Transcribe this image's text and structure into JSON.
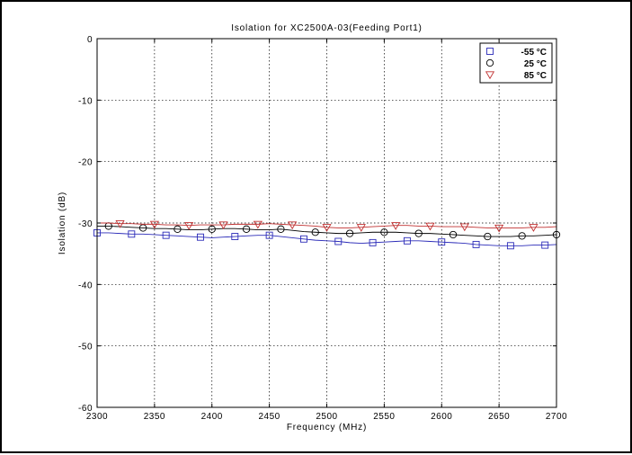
{
  "chart_data": {
    "type": "line",
    "title": "Isolation for XC2500A-03(Feeding Port1)",
    "xlabel": "Frequency (MHz)",
    "ylabel": "Isolation (dB)",
    "xlim": [
      2300,
      2700
    ],
    "ylim": [
      -60,
      0
    ],
    "xticks": [
      2300,
      2350,
      2400,
      2450,
      2500,
      2550,
      2600,
      2650,
      2700
    ],
    "yticks": [
      0,
      -10,
      -20,
      -30,
      -40,
      -50,
      -60
    ],
    "xtick_labels": [
      "2300",
      "2350",
      "2400",
      "2450",
      "2500",
      "2550",
      "2600",
      "2650",
      "2700"
    ],
    "ytick_labels": [
      "0",
      "-10",
      "-20",
      "-30",
      "-40",
      "-50",
      "-60"
    ],
    "grid": true,
    "legend_position": "top-right",
    "x": [
      2300,
      2310,
      2320,
      2330,
      2340,
      2350,
      2360,
      2370,
      2380,
      2390,
      2400,
      2410,
      2420,
      2430,
      2440,
      2450,
      2460,
      2470,
      2480,
      2490,
      2500,
      2510,
      2520,
      2530,
      2540,
      2550,
      2560,
      2570,
      2580,
      2590,
      2600,
      2610,
      2620,
      2630,
      2640,
      2650,
      2660,
      2670,
      2680,
      2690,
      2700
    ],
    "series": [
      {
        "name": "-55 °C",
        "marker": "square",
        "marker_color": "#2b2bb8",
        "line_color": "#2b2bb8",
        "values": [
          -31.6,
          -31.6,
          -31.7,
          -31.8,
          -31.8,
          -31.9,
          -32.0,
          -32.1,
          -32.2,
          -32.3,
          -32.4,
          -32.3,
          -32.2,
          -32.1,
          -32.0,
          -32.0,
          -32.2,
          -32.4,
          -32.6,
          -32.8,
          -32.9,
          -33.0,
          -33.2,
          -33.3,
          -33.2,
          -33.1,
          -33.0,
          -32.9,
          -32.9,
          -33.0,
          -33.1,
          -33.2,
          -33.3,
          -33.5,
          -33.6,
          -33.7,
          -33.7,
          -33.7,
          -33.6,
          -33.6,
          -33.5
        ]
      },
      {
        "name": "25 °C",
        "marker": "circle",
        "marker_color": "#000000",
        "line_color": "#000000",
        "values": [
          -30.5,
          -30.5,
          -30.6,
          -30.7,
          -30.8,
          -30.9,
          -30.9,
          -31.0,
          -31.1,
          -31.1,
          -31.0,
          -30.9,
          -30.9,
          -31.0,
          -31.1,
          -31.1,
          -31.0,
          -31.2,
          -31.4,
          -31.5,
          -31.6,
          -31.7,
          -31.7,
          -31.6,
          -31.5,
          -31.5,
          -31.5,
          -31.6,
          -31.7,
          -31.7,
          -31.8,
          -31.9,
          -32.0,
          -32.1,
          -32.2,
          -32.2,
          -32.2,
          -32.1,
          -32.1,
          -32.0,
          -31.9
        ]
      },
      {
        "name": "85 °C",
        "marker": "triangle-down",
        "marker_color": "#c03030",
        "line_color": "#c03030",
        "values": [
          -30.0,
          -30.0,
          -30.1,
          -30.1,
          -30.2,
          -30.2,
          -30.3,
          -30.3,
          -30.4,
          -30.3,
          -30.3,
          -30.3,
          -30.2,
          -30.2,
          -30.2,
          -30.1,
          -30.2,
          -30.3,
          -30.4,
          -30.5,
          -30.7,
          -30.8,
          -30.8,
          -30.7,
          -30.6,
          -30.5,
          -30.4,
          -30.4,
          -30.5,
          -30.5,
          -30.6,
          -30.6,
          -30.6,
          -30.7,
          -30.8,
          -30.8,
          -30.8,
          -30.8,
          -30.7,
          -30.7,
          -30.6
        ]
      }
    ]
  }
}
